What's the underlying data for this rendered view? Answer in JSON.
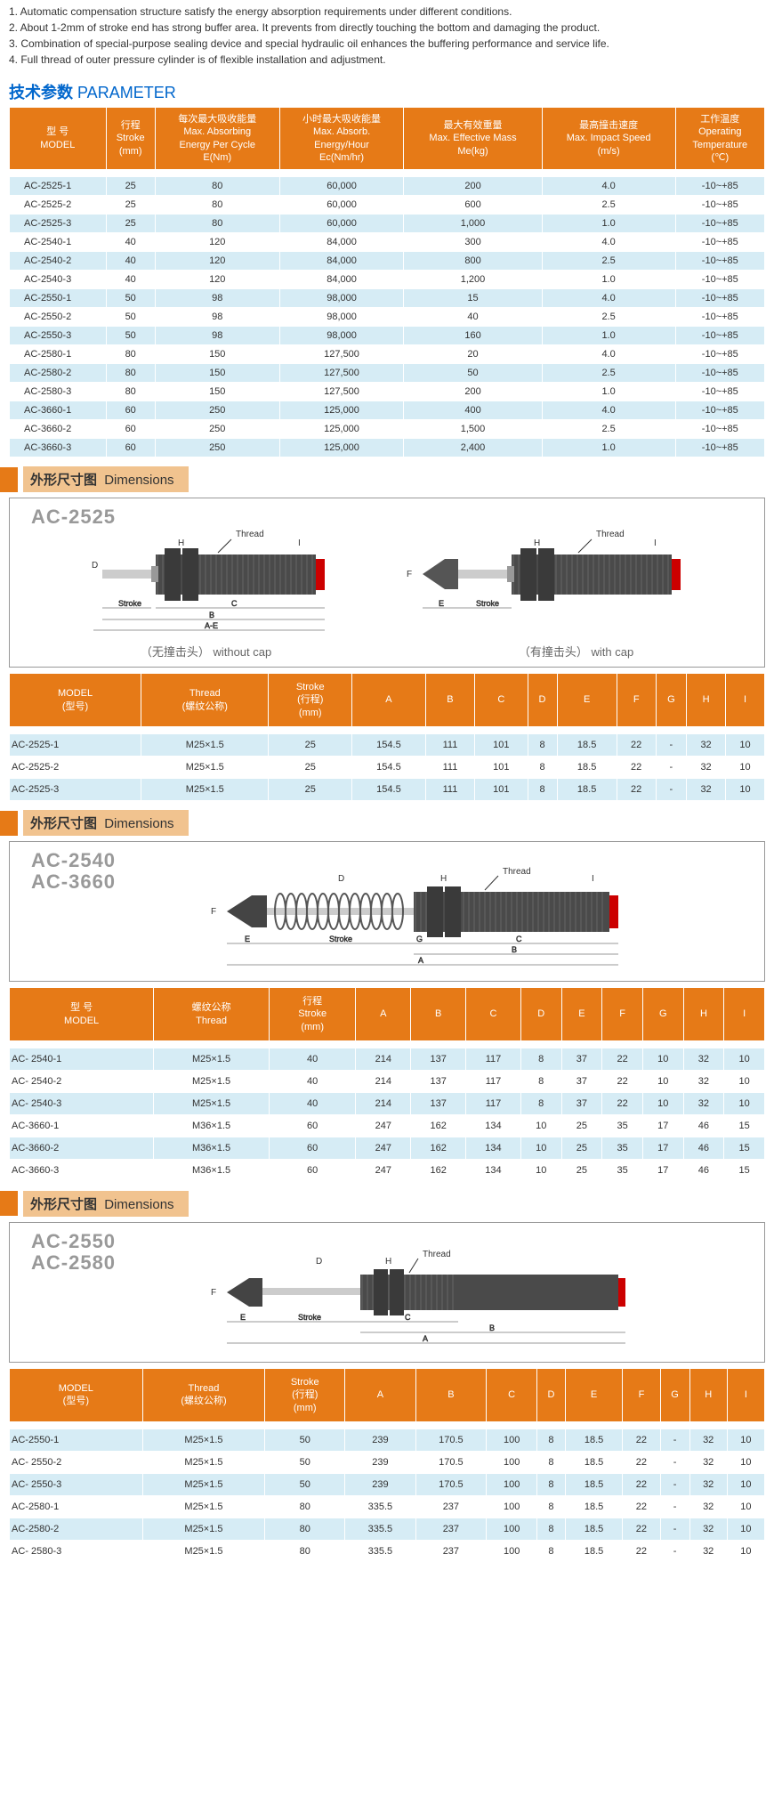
{
  "notes": [
    "1.  Automatic compensation structure satisfy the energy absorption requirements under different conditions.",
    "2.  About 1-2mm of stroke end has strong buffer area.  It prevents from directly touching the bottom and damaging the product.",
    "3.  Combination of special-purpose sealing device and special hydraulic oil enhances the buffering performance and service life.",
    "4.  Full thread of outer pressure cylinder is of flexible installation and adjustment."
  ],
  "param_title_cn": "技术参数",
  "param_title_en": "PARAMETER",
  "colors": {
    "header_bg": "#e67a17",
    "row_bg": "#d6ecf5",
    "row_alt_bg": "#ffffff",
    "section_bg": "#f1c38f",
    "title_blue": "#0066cc",
    "diagram_gray": "#999999"
  },
  "param_headers": [
    "型 号\nMODEL",
    "行程\nStroke\n(mm)",
    "每次最大吸收能量\nMax. Absorbing\nEnergy Per Cycle\nE(Nm)",
    "小时最大吸收能量\nMax. Absorb.\nEnergy/Hour\nEc(Nm/hr)",
    "最大有效重量\nMax. Effective Mass\nMe(kg)",
    "最高撞击速度\nMax. Impact Speed\n(m/s)",
    "工作温度\nOperating\nTemperature\n(℃)"
  ],
  "param_rows": [
    [
      "AC-2525-1",
      "25",
      "80",
      "60,000",
      "200",
      "4.0",
      "-10~+85"
    ],
    [
      "AC-2525-2",
      "25",
      "80",
      "60,000",
      "600",
      "2.5",
      "-10~+85"
    ],
    [
      "AC-2525-3",
      "25",
      "80",
      "60,000",
      "1,000",
      "1.0",
      "-10~+85"
    ],
    [
      "AC-2540-1",
      "40",
      "120",
      "84,000",
      "300",
      "4.0",
      "-10~+85"
    ],
    [
      "AC-2540-2",
      "40",
      "120",
      "84,000",
      "800",
      "2.5",
      "-10~+85"
    ],
    [
      "AC-2540-3",
      "40",
      "120",
      "84,000",
      "1,200",
      "1.0",
      "-10~+85"
    ],
    [
      "AC-2550-1",
      "50",
      "98",
      "98,000",
      "15",
      "4.0",
      "-10~+85"
    ],
    [
      "AC-2550-2",
      "50",
      "98",
      "98,000",
      "40",
      "2.5",
      "-10~+85"
    ],
    [
      "AC-2550-3",
      "50",
      "98",
      "98,000",
      "160",
      "1.0",
      "-10~+85"
    ],
    [
      "AC-2580-1",
      "80",
      "150",
      "127,500",
      "20",
      "4.0",
      "-10~+85"
    ],
    [
      "AC-2580-2",
      "80",
      "150",
      "127,500",
      "50",
      "2.5",
      "-10~+85"
    ],
    [
      "AC-2580-3",
      "80",
      "150",
      "127,500",
      "200",
      "1.0",
      "-10~+85"
    ],
    [
      "AC-3660-1",
      "60",
      "250",
      "125,000",
      "400",
      "4.0",
      "-10~+85"
    ],
    [
      "AC-3660-2",
      "60",
      "250",
      "125,000",
      "1,500",
      "2.5",
      "-10~+85"
    ],
    [
      "AC-3660-3",
      "60",
      "250",
      "125,000",
      "2,400",
      "1.0",
      "-10~+85"
    ]
  ],
  "section_cn": "外形尺寸图",
  "section_en": "Dimensions",
  "diag1_model": "AC-2525",
  "diag1_caption_left_cn": "（无撞击头）",
  "diag1_caption_left_en": "without cap",
  "diag1_caption_right_cn": "（有撞击头）",
  "diag1_caption_right_en": "with cap",
  "dim_headers_v1": [
    "MODEL\n(型号)",
    "Thread\n(螺纹公称)",
    "Stroke\n(行程)\n(mm)",
    "A",
    "B",
    "C",
    "D",
    "E",
    "F",
    "G",
    "H",
    "I"
  ],
  "dim_headers_v2": [
    "型 号\nMODEL",
    "螺纹公称\nThread",
    "行程\nStroke\n(mm)",
    "A",
    "B",
    "C",
    "D",
    "E",
    "F",
    "G",
    "H",
    "I"
  ],
  "dim1_rows": [
    [
      "AC-2525-1",
      "M25×1.5",
      "25",
      "154.5",
      "111",
      "101",
      "8",
      "18.5",
      "22",
      "-",
      "32",
      "10"
    ],
    [
      "AC-2525-2",
      "M25×1.5",
      "25",
      "154.5",
      "111",
      "101",
      "8",
      "18.5",
      "22",
      "-",
      "32",
      "10"
    ],
    [
      "AC-2525-3",
      "M25×1.5",
      "25",
      "154.5",
      "111",
      "101",
      "8",
      "18.5",
      "22",
      "-",
      "32",
      "10"
    ]
  ],
  "diag2_model1": "AC-2540",
  "diag2_model2": "AC-3660",
  "dim2_rows": [
    [
      "AC- 2540-1",
      "M25×1.5",
      "40",
      "214",
      "137",
      "117",
      "8",
      "37",
      "22",
      "10",
      "32",
      "10"
    ],
    [
      "AC- 2540-2",
      "M25×1.5",
      "40",
      "214",
      "137",
      "117",
      "8",
      "37",
      "22",
      "10",
      "32",
      "10"
    ],
    [
      "AC- 2540-3",
      "M25×1.5",
      "40",
      "214",
      "137",
      "117",
      "8",
      "37",
      "22",
      "10",
      "32",
      "10"
    ],
    [
      "AC-3660-1",
      "M36×1.5",
      "60",
      "247",
      "162",
      "134",
      "10",
      "25",
      "35",
      "17",
      "46",
      "15"
    ],
    [
      "AC-3660-2",
      "M36×1.5",
      "60",
      "247",
      "162",
      "134",
      "10",
      "25",
      "35",
      "17",
      "46",
      "15"
    ],
    [
      "AC-3660-3",
      "M36×1.5",
      "60",
      "247",
      "162",
      "134",
      "10",
      "25",
      "35",
      "17",
      "46",
      "15"
    ]
  ],
  "diag3_model1": "AC-2550",
  "diag3_model2": "AC-2580",
  "dim3_rows": [
    [
      "AC-2550-1",
      "M25×1.5",
      "50",
      "239",
      "170.5",
      "100",
      "8",
      "18.5",
      "22",
      "-",
      "32",
      "10"
    ],
    [
      "AC- 2550-2",
      "M25×1.5",
      "50",
      "239",
      "170.5",
      "100",
      "8",
      "18.5",
      "22",
      "-",
      "32",
      "10"
    ],
    [
      "AC- 2550-3",
      "M25×1.5",
      "50",
      "239",
      "170.5",
      "100",
      "8",
      "18.5",
      "22",
      "-",
      "32",
      "10"
    ],
    [
      "AC-2580-1",
      "M25×1.5",
      "80",
      "335.5",
      "237",
      "100",
      "8",
      "18.5",
      "22",
      "-",
      "32",
      "10"
    ],
    [
      "AC-2580-2",
      "M25×1.5",
      "80",
      "335.5",
      "237",
      "100",
      "8",
      "18.5",
      "22",
      "-",
      "32",
      "10"
    ],
    [
      "AC- 2580-3",
      "M25×1.5",
      "80",
      "335.5",
      "237",
      "100",
      "8",
      "18.5",
      "22",
      "-",
      "32",
      "10"
    ]
  ],
  "diagram_labels": {
    "thread": "Thread",
    "stroke": "Stroke"
  }
}
